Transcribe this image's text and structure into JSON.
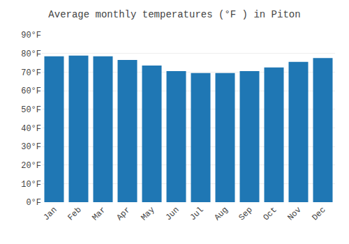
{
  "chart_data": {
    "type": "bar",
    "title": "Average monthly temperatures (°F ) in Piton",
    "categories": [
      "Jan",
      "Feb",
      "Mar",
      "Apr",
      "May",
      "Jun",
      "Jul",
      "Aug",
      "Sep",
      "Oct",
      "Nov",
      "Dec"
    ],
    "values": [
      78.5,
      78.8,
      78.5,
      76.5,
      73.5,
      70.5,
      69.5,
      69.5,
      70.5,
      72.5,
      75.5,
      77.5
    ],
    "ylim": [
      0,
      90
    ],
    "yticks": [
      {
        "value": 0,
        "label": "0°F"
      },
      {
        "value": 10,
        "label": "10°F"
      },
      {
        "value": 20,
        "label": "20°F"
      },
      {
        "value": 30,
        "label": "30°F"
      },
      {
        "value": 40,
        "label": "40°F"
      },
      {
        "value": 50,
        "label": "50°F"
      },
      {
        "value": 60,
        "label": "60°F"
      },
      {
        "value": 70,
        "label": "70°F"
      },
      {
        "value": 80,
        "label": "80°F"
      },
      {
        "value": 90,
        "label": "90°F"
      }
    ],
    "grid": true
  }
}
